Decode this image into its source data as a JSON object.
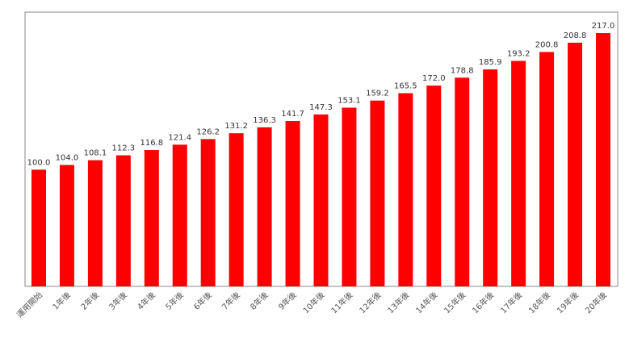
{
  "chart_data": {
    "type": "bar",
    "categories": [
      "運用開始",
      "1年後",
      "2年後",
      "3年後",
      "4年後",
      "5年後",
      "6年後",
      "7年後",
      "8年後",
      "9年後",
      "10年後",
      "11年後",
      "12年後",
      "13年後",
      "14年後",
      "15年後",
      "16年後",
      "17年後",
      "18年後",
      "19年後",
      "20年後"
    ],
    "series": [
      {
        "values": [
          100.0,
          104.0,
          108.1,
          112.3,
          116.8,
          121.4,
          126.2,
          131.2,
          136.3,
          141.7,
          147.3,
          153.1,
          159.2,
          165.5,
          172.0,
          178.8,
          185.9,
          193.2,
          200.8,
          208.8,
          217.0
        ]
      }
    ],
    "value_labels": [
      "100.0",
      "104.0",
      "108.1",
      "112.3",
      "116.8",
      "121.4",
      "126.2",
      "131.2",
      "136.3",
      "141.7",
      "147.3",
      "153.1",
      "159.2",
      "165.5",
      "172.0",
      "178.8",
      "185.9",
      "193.2",
      "200.8",
      "208.8",
      "217.0"
    ],
    "title": "",
    "xlabel": "",
    "ylabel": "",
    "ylim": [
      0,
      235
    ],
    "grid": false,
    "legend": "none",
    "bar_color": "#ff0000",
    "frame_color": "#888888"
  }
}
